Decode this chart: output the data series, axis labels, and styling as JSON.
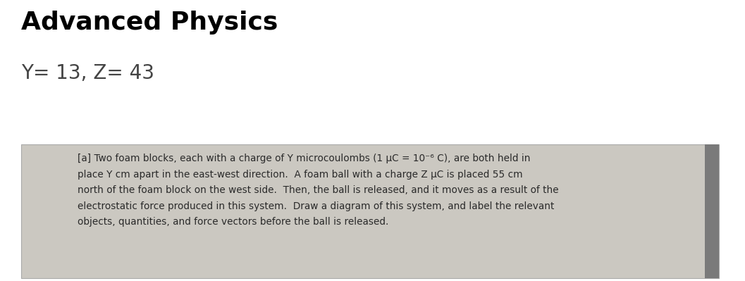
{
  "title": "Advanced Physics",
  "subtitle": "Y= 13, Z= 43",
  "box_text_line1": "[a] Two foam blocks, each with a charge of Y microcoulombs (1 μC = 10⁻⁶ C), are both held in",
  "box_text_line2": "place Y cm apart in the east-west direction.  A foam ball with a charge Z μC is placed 55 cm",
  "box_text_line3": "north of the foam block on the west side.  Then, the ball is released, and it moves as a result of the",
  "box_text_line4": "electrostatic force produced in this system.  Draw a diagram of this system, and label the relevant",
  "box_text_line5": "objects, quantities, and force vectors before the ball is released.",
  "bg_color": "#ffffff",
  "box_bg_color": "#cbc8c1",
  "box_border_color": "#aaaaaa",
  "title_color": "#000000",
  "subtitle_color": "#444444",
  "text_color": "#2a2a2a",
  "right_bar_color": "#7a7a7a",
  "title_fontsize": 26,
  "subtitle_fontsize": 20,
  "body_fontsize": 9.8
}
